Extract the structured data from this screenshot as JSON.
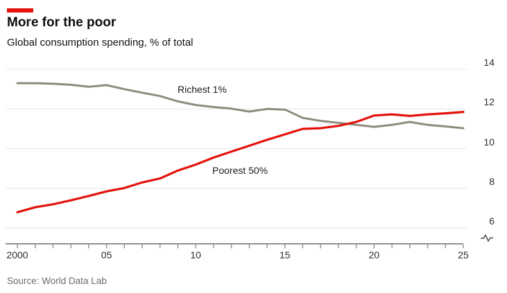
{
  "header": {
    "title": "More for the poor",
    "subtitle": "Global consumption spending, % of total"
  },
  "footer": {
    "source": "Source: World Data Lab"
  },
  "colors": {
    "accent_red": "#e3120b",
    "richest_line": "#8e8c7c",
    "poorest_line": "#e3120b",
    "gridline": "#e4e4e1",
    "axis": "#8f8f8f",
    "tick_text": "#2b2b2b"
  },
  "chart_data": {
    "type": "line",
    "title": "More for the poor",
    "subtitle": "Global consumption spending, % of total",
    "x": [
      2000,
      2001,
      2002,
      2003,
      2004,
      2005,
      2006,
      2007,
      2008,
      2009,
      2010,
      2011,
      2012,
      2013,
      2014,
      2015,
      2016,
      2017,
      2018,
      2019,
      2020,
      2021,
      2022,
      2023,
      2024,
      2025
    ],
    "series": [
      {
        "name": "Richest 1%",
        "color": "#8e8c7c",
        "values": [
          13.3,
          13.3,
          13.27,
          13.22,
          13.12,
          13.2,
          13.0,
          12.82,
          12.65,
          12.38,
          12.2,
          12.1,
          12.02,
          11.87,
          12.0,
          11.97,
          11.55,
          11.4,
          11.3,
          11.2,
          11.1,
          11.2,
          11.35,
          11.2,
          11.12,
          11.03
        ]
      },
      {
        "name": "Poorest 50%",
        "color": "#e3120b",
        "values": [
          6.8,
          7.05,
          7.2,
          7.4,
          7.62,
          7.85,
          8.02,
          8.3,
          8.5,
          8.9,
          9.2,
          9.55,
          9.85,
          10.15,
          10.45,
          10.72,
          11.0,
          11.03,
          11.15,
          11.35,
          11.67,
          11.73,
          11.65,
          11.73,
          11.78,
          11.85
        ]
      }
    ],
    "ylim": [
      6,
      14
    ],
    "yticks": [
      6,
      8,
      10,
      12,
      14
    ],
    "y_axis_side": "right",
    "axis_break": true,
    "grid": "horizontal",
    "x_tick_labels": [
      {
        "year": 2000,
        "label": "2000"
      },
      {
        "year": 2005,
        "label": "05"
      },
      {
        "year": 2010,
        "label": "10"
      },
      {
        "year": 2015,
        "label": "15"
      },
      {
        "year": 2020,
        "label": "20"
      },
      {
        "year": 2025,
        "label": "25"
      }
    ],
    "legend": "inline-labels"
  }
}
